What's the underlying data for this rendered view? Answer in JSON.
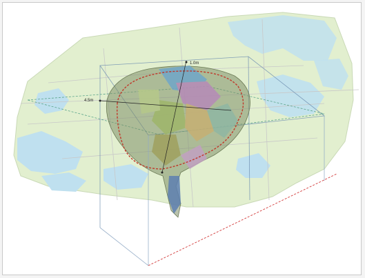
{
  "scene": {
    "labels": {
      "north_marker": "1.0m",
      "west_marker": "4.5m"
    },
    "colors": {
      "basemap_land": "#e3efcf",
      "basemap_water": "#bfe0ef",
      "roads": "#c9c9c9",
      "plume_shell": "#7f8f6a",
      "contour_line": "#c0392b",
      "box_edges": "#6f8fb1",
      "box_floor_edge": "#d33a3a"
    },
    "icons": [
      "dot-marker-icon"
    ]
  }
}
